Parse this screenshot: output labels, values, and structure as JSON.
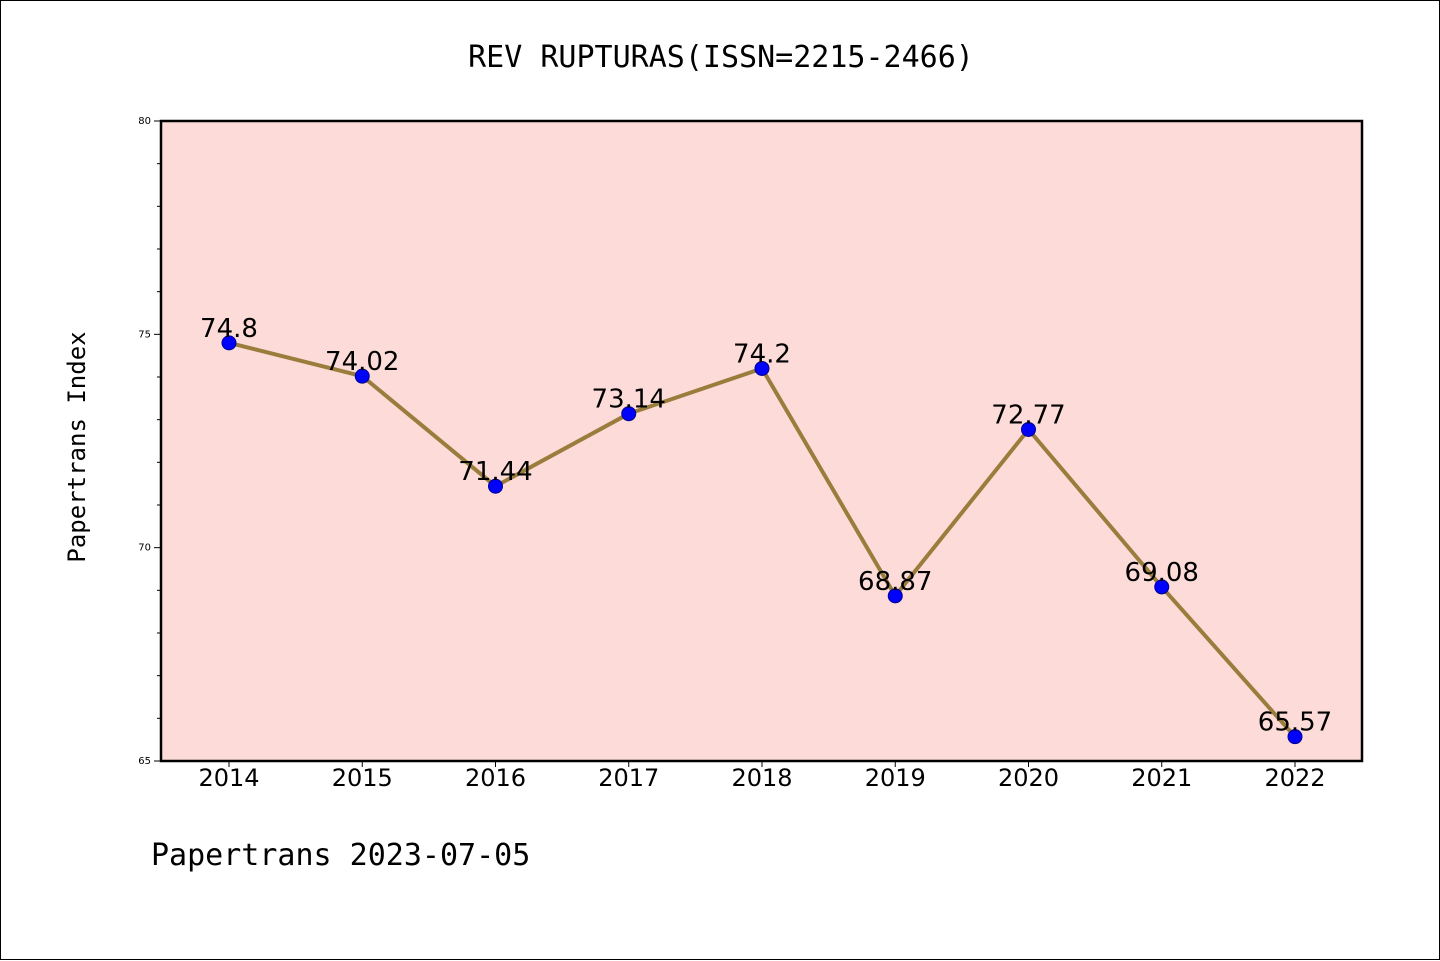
{
  "chart_data": {
    "type": "line",
    "title": "REV RUPTURAS(ISSN=2215-2466)",
    "ylabel": "Papertrans Index",
    "xlabel": "",
    "footer": "Papertrans 2023-07-05",
    "categories": [
      "2014",
      "2015",
      "2016",
      "2017",
      "2018",
      "2019",
      "2020",
      "2021",
      "2022"
    ],
    "values": [
      74.8,
      74.02,
      71.44,
      73.14,
      74.2,
      68.87,
      72.77,
      69.08,
      65.57
    ],
    "value_labels": [
      "74.8",
      "74.02",
      "71.44",
      "73.14",
      "74.2",
      "68.87",
      "72.77",
      "69.08",
      "65.57"
    ],
    "ylim": [
      65,
      80
    ],
    "yticks": [
      "65",
      "70",
      "75",
      "80"
    ],
    "grid": false,
    "colors": {
      "plot_background": "#fddbd8",
      "line": "#9a7d3c",
      "marker": "#0000ff",
      "marker_edge": "#00008b"
    }
  }
}
